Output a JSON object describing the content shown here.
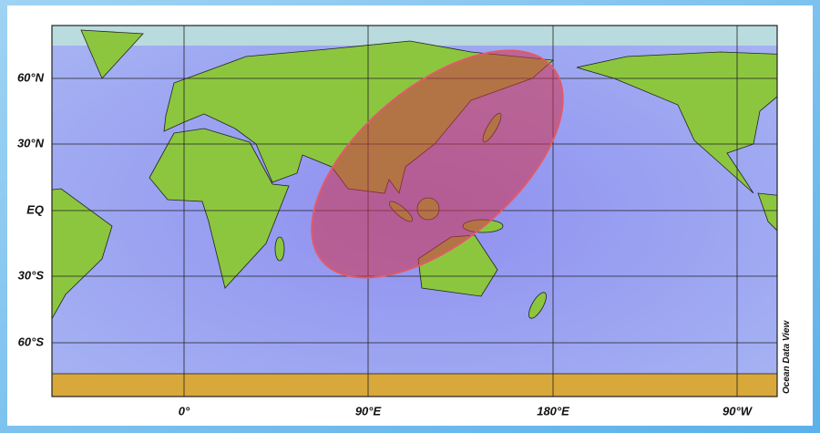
{
  "map": {
    "lat_labels": [
      "60°N",
      "30°N",
      "EQ",
      "30°S",
      "60°S"
    ],
    "lon_labels": [
      "0°",
      "90°E",
      "180°E",
      "90°W"
    ],
    "credit": "Ocean Data View"
  }
}
